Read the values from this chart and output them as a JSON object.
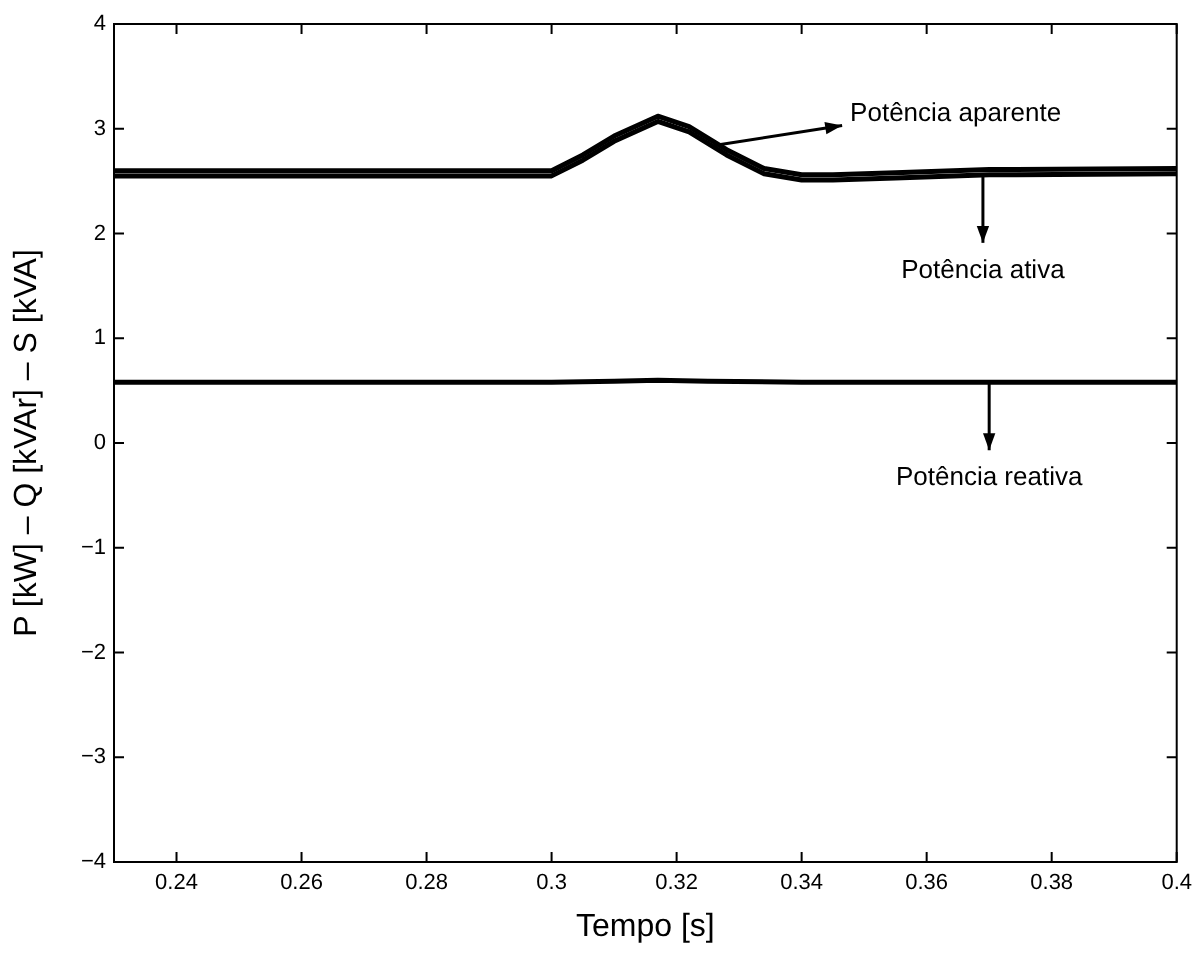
{
  "chart_data": {
    "type": "line",
    "xlabel": "Tempo [s]",
    "ylabel": "P [kW] – Q [kVAr] – S [kVA]",
    "xlim": [
      0.23,
      0.4
    ],
    "xticks": [
      0.24,
      0.26,
      0.28,
      0.3,
      0.32,
      0.34,
      0.36,
      0.38,
      0.4
    ],
    "ylim": [
      -4,
      4
    ],
    "yticks": [
      -4,
      -3,
      -2,
      -1,
      0,
      1,
      2,
      3,
      4
    ],
    "grid": false,
    "legend": false,
    "marker": "none",
    "line_style": "solid",
    "series": [
      {
        "color": "#000000",
        "x": [
          0.23,
          0.3,
          0.305,
          0.31,
          0.317,
          0.322,
          0.328,
          0.334,
          0.34,
          0.345,
          0.355,
          0.37,
          0.4
        ],
        "values": [
          2.6,
          2.6,
          2.75,
          2.93,
          3.12,
          3.02,
          2.8,
          2.62,
          2.56,
          2.56,
          2.58,
          2.61,
          2.62
        ]
      },
      {
        "color": "#000000",
        "x": [
          0.23,
          0.3,
          0.305,
          0.31,
          0.317,
          0.322,
          0.328,
          0.334,
          0.34,
          0.345,
          0.355,
          0.37,
          0.4
        ],
        "values": [
          2.55,
          2.55,
          2.7,
          2.88,
          3.07,
          2.97,
          2.75,
          2.57,
          2.51,
          2.51,
          2.53,
          2.56,
          2.57
        ]
      },
      {
        "color": "#000000",
        "x": [
          0.23,
          0.3,
          0.31,
          0.317,
          0.325,
          0.34,
          0.4
        ],
        "values": [
          0.58,
          0.58,
          0.59,
          0.6,
          0.59,
          0.58,
          0.58
        ]
      }
    ],
    "annotations": [
      {
        "text": "Potência aparente",
        "x": 0.326,
        "y": 2.84
      },
      {
        "text": "Potência ativa",
        "x": 0.369,
        "y": 2.56
      },
      {
        "text": "Potência reativa",
        "x": 0.37,
        "y": 0.58
      }
    ]
  }
}
